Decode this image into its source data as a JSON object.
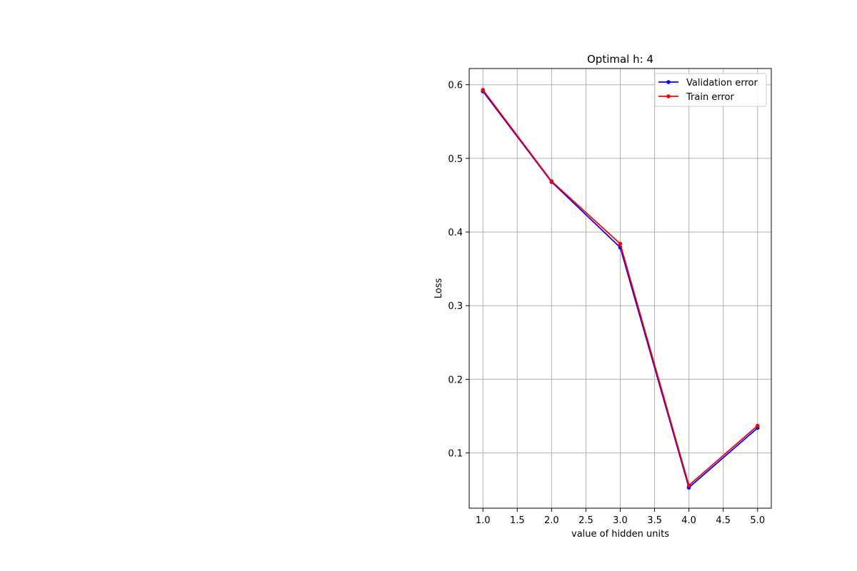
{
  "chart_data": {
    "type": "line",
    "title": "Optimal h: 4",
    "xlabel": "value of hidden units",
    "ylabel": "Loss",
    "x": [
      1,
      2,
      3,
      4,
      5
    ],
    "xlim": [
      0.8,
      5.2
    ],
    "ylim": [
      0.025,
      0.622
    ],
    "xticks": [
      "1.0",
      "1.5",
      "2.0",
      "2.5",
      "3.0",
      "3.5",
      "4.0",
      "4.5",
      "5.0"
    ],
    "yticks": [
      "0.1",
      "0.2",
      "0.3",
      "0.4",
      "0.5",
      "0.6"
    ],
    "grid": true,
    "legend_position": "top-right",
    "series": [
      {
        "name": "Validation error",
        "color": "#0000ff",
        "values": [
          0.591,
          0.468,
          0.379,
          0.053,
          0.134
        ]
      },
      {
        "name": "Train error",
        "color": "#ff0000",
        "values": [
          0.593,
          0.469,
          0.384,
          0.056,
          0.137
        ]
      }
    ]
  }
}
